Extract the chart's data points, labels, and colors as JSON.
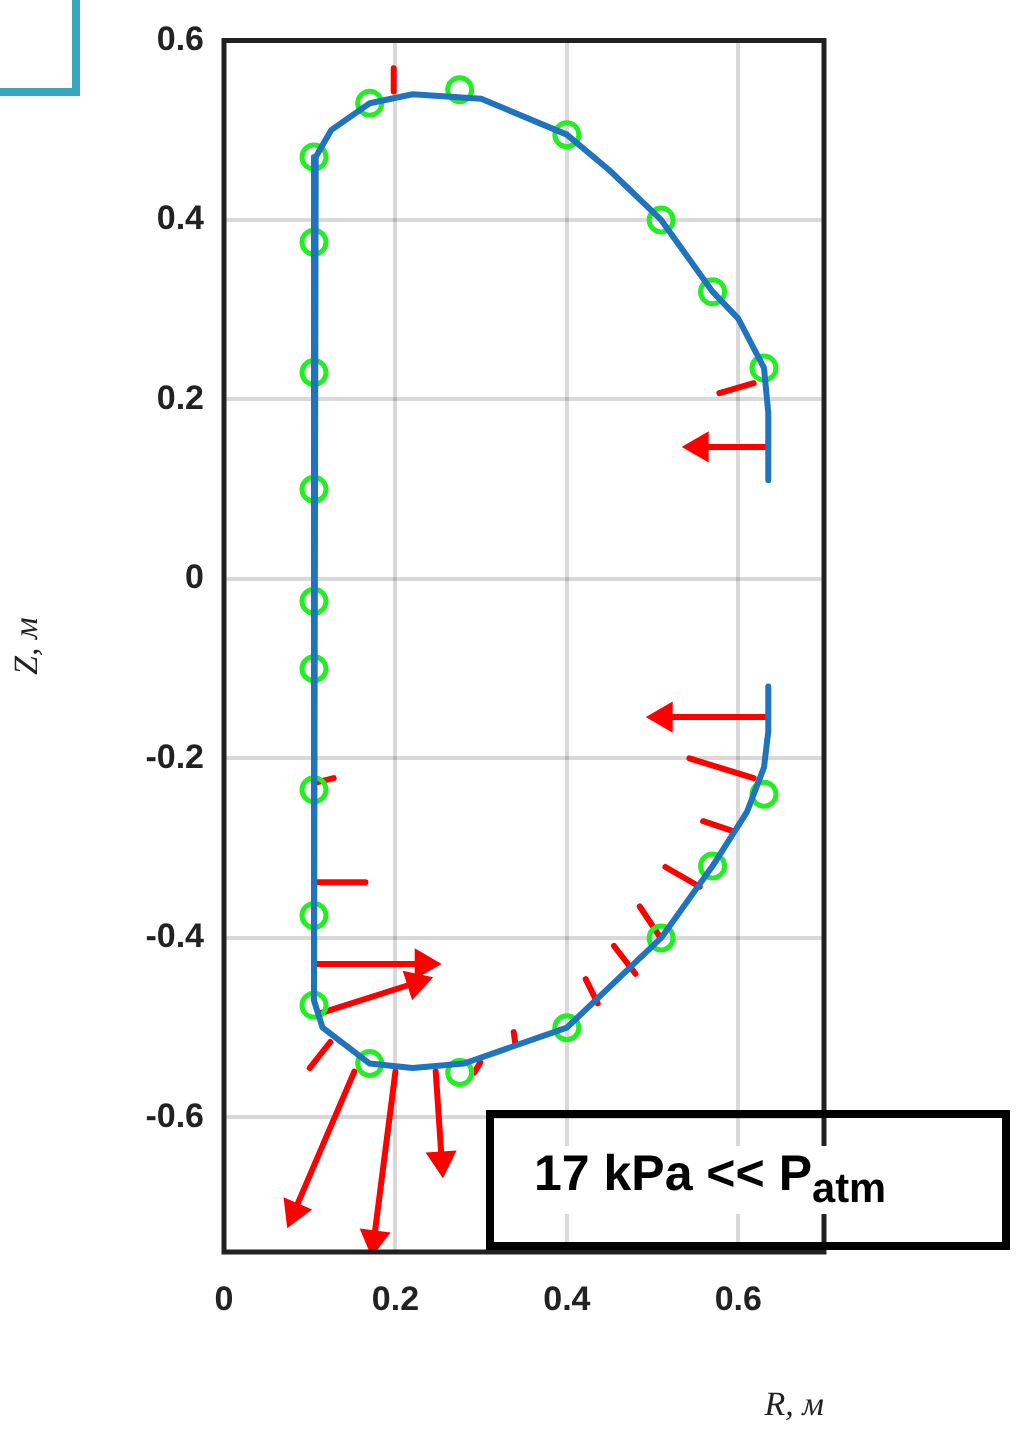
{
  "chart_data": {
    "type": "line",
    "xlabel": "R, м",
    "ylabel": "Z, м",
    "xlim": [
      0,
      0.7
    ],
    "ylim": [
      -0.75,
      0.6
    ],
    "xticks": [
      0,
      0.2,
      0.4,
      0.6
    ],
    "yticks": [
      -0.6,
      -0.4,
      -0.2,
      0,
      0.2,
      0.4,
      0.6
    ],
    "grid": true,
    "annotations": [
      "17 kPa << P$_{atm}$"
    ],
    "series": [
      {
        "color": "#1f74bd",
        "marker": "none",
        "x": [
          0.635,
          0.635,
          0.63,
          0.6,
          0.57,
          0.51,
          0.45,
          0.4,
          0.3,
          0.22,
          0.17,
          0.125,
          0.107,
          0.105,
          0.115,
          0.17,
          0.22,
          0.28,
          0.4,
          0.51,
          0.57,
          0.61,
          0.63,
          0.635,
          0.635
        ],
        "values": [
          0.11,
          0.185,
          0.235,
          0.29,
          0.32,
          0.4,
          0.455,
          0.495,
          0.535,
          0.54,
          0.53,
          0.5,
          0.47,
          -0.47,
          -0.5,
          -0.54,
          -0.545,
          -0.54,
          -0.5,
          -0.4,
          -0.32,
          -0.26,
          -0.21,
          -0.17,
          -0.12
        ]
      },
      {
        "type": "scatter",
        "color": "#22ee22",
        "marker": "circle",
        "x": [
          0.105,
          0.105,
          0.17,
          0.275,
          0.4,
          0.51,
          0.57,
          0.63,
          0.105,
          0.105,
          0.105,
          0.105,
          0.105,
          0.105,
          0.105,
          0.17,
          0.275,
          0.4,
          0.51,
          0.57,
          0.63
        ],
        "values": [
          0.47,
          0.375,
          0.53,
          0.545,
          0.495,
          0.4,
          0.32,
          0.235,
          0.23,
          0.1,
          -0.025,
          -0.1,
          -0.235,
          -0.375,
          -0.475,
          -0.54,
          -0.55,
          -0.5,
          -0.4,
          -0.32,
          -0.24
        ]
      },
      {
        "color": "#ff0000",
        "marker": "triangle",
        "x": [
          0.632,
          0.555
        ],
        "values": [
          0.147,
          0.147
        ]
      },
      {
        "color": "#ff0000",
        "marker": "none",
        "x": [
          0.618,
          0.578
        ],
        "values": [
          0.218,
          0.207
        ]
      },
      {
        "color": "#ff0000",
        "marker": "triangle",
        "x": [
          0.632,
          0.513
        ],
        "values": [
          -0.154,
          -0.154
        ]
      },
      {
        "color": "#ff0000",
        "marker": "none",
        "x": [
          0.618,
          0.543
        ],
        "values": [
          -0.222,
          -0.2
        ]
      },
      {
        "color": "#ff0000",
        "marker": "none",
        "x": [
          0.594,
          0.559
        ],
        "values": [
          -0.281,
          -0.27
        ]
      },
      {
        "color": "#ff0000",
        "marker": "none",
        "x": [
          0.555,
          0.515
        ],
        "values": [
          -0.343,
          -0.321
        ]
      },
      {
        "color": "#ff0000",
        "marker": "none",
        "x": [
          0.508,
          0.485
        ],
        "values": [
          -0.398,
          -0.365
        ]
      },
      {
        "color": "#ff0000",
        "marker": "none",
        "x": [
          0.48,
          0.455
        ],
        "values": [
          -0.44,
          -0.409
        ]
      },
      {
        "color": "#ff0000",
        "marker": "none",
        "x": [
          0.436,
          0.422
        ],
        "values": [
          -0.473,
          -0.446
        ]
      },
      {
        "color": "#ff0000",
        "marker": "none",
        "x": [
          0.34,
          0.338
        ],
        "values": [
          -0.519,
          -0.505
        ]
      },
      {
        "color": "#ff0000",
        "marker": "none",
        "x": [
          0.292,
          0.299
        ],
        "values": [
          -0.55,
          -0.539
        ]
      },
      {
        "color": "#ff0000",
        "marker": "triangle",
        "x": [
          0.247,
          0.254
        ],
        "values": [
          -0.549,
          -0.648
        ]
      },
      {
        "color": "#ff0000",
        "marker": "triangle",
        "x": [
          0.2,
          0.175
        ],
        "values": [
          -0.549,
          -0.736
        ]
      },
      {
        "color": "#ff0000",
        "marker": "triangle",
        "x": [
          0.152,
          0.082
        ],
        "values": [
          -0.549,
          -0.705
        ]
      },
      {
        "color": "#ff0000",
        "marker": "none",
        "x": [
          0.124,
          0.1
        ],
        "values": [
          -0.516,
          -0.545
        ]
      },
      {
        "color": "#ff0000",
        "marker": "triangle",
        "x": [
          0.112,
          0.224
        ],
        "values": [
          -0.484,
          -0.45
        ]
      },
      {
        "color": "#ff0000",
        "marker": "triangle",
        "x": [
          0.107,
          0.233
        ],
        "values": [
          -0.429,
          -0.429
        ]
      },
      {
        "color": "#ff0000",
        "marker": "none",
        "x": [
          0.107,
          0.165
        ],
        "values": [
          -0.338,
          -0.338
        ]
      },
      {
        "color": "#ff0000",
        "marker": "none",
        "x": [
          0.107,
          0.128
        ],
        "values": [
          -0.227,
          -0.222
        ]
      },
      {
        "color": "#ff0000",
        "marker": "none",
        "x": [
          0.198,
          0.198
        ],
        "values": [
          0.569,
          0.543
        ]
      }
    ]
  }
}
